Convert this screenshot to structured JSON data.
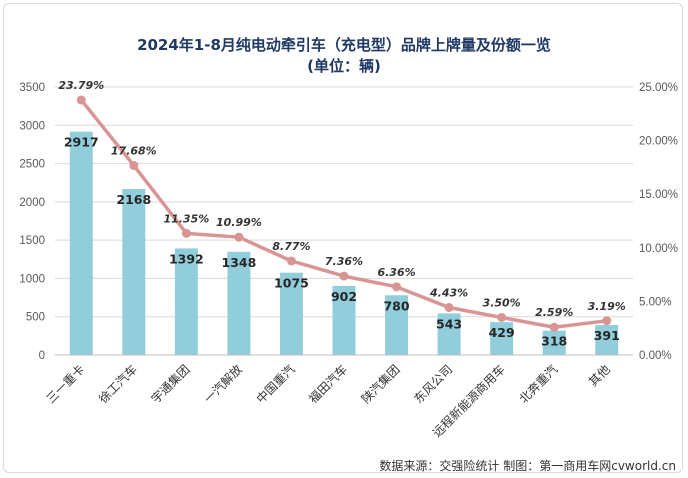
{
  "chart_data": {
    "type": "bar",
    "title": "2024年1-8月纯电动牵引车（充电型）品牌上牌量及份额一览",
    "subtitle": "(单位：辆)",
    "categories": [
      "三一重卡",
      "徐工汽车",
      "宇通集团",
      "一汽解放",
      "中国重汽",
      "福田汽车",
      "陕汽集团",
      "东风公司",
      "远程新能源商用车",
      "北奔重汽",
      "其他"
    ],
    "series": [
      {
        "type": "bar",
        "axis": "left",
        "color": "#92cddc",
        "values": [
          2917,
          2168,
          1392,
          1348,
          1075,
          902,
          780,
          543,
          429,
          318,
          391
        ],
        "labels": [
          "2917",
          "2168",
          "1392",
          "1348",
          "1075",
          "902",
          "780",
          "543",
          "429",
          "318",
          "391"
        ]
      },
      {
        "type": "line",
        "axis": "right",
        "color": "#d99594",
        "values": [
          23.79,
          17.68,
          11.35,
          10.99,
          8.77,
          7.36,
          6.36,
          4.43,
          3.5,
          2.59,
          3.19
        ],
        "labels": [
          "23.79%",
          "17.68%",
          "11.35%",
          "10.99%",
          "8.77%",
          "7.36%",
          "6.36%",
          "4.43%",
          "3.50%",
          "2.59%",
          "3.19%"
        ]
      }
    ],
    "ylim": [
      0,
      3500
    ],
    "yticks": [
      "0",
      "500",
      "1000",
      "1500",
      "2000",
      "2500",
      "3000",
      "3500"
    ],
    "y2lim": [
      0,
      25
    ],
    "y2ticks": [
      "0.00%",
      "5.00%",
      "10.00%",
      "15.00%",
      "20.00%",
      "25.00%"
    ],
    "grid": true,
    "legend": "none"
  },
  "footer": {
    "source": "数据来源：交强险统计 制图：第一商用车网cvworld.cn"
  }
}
